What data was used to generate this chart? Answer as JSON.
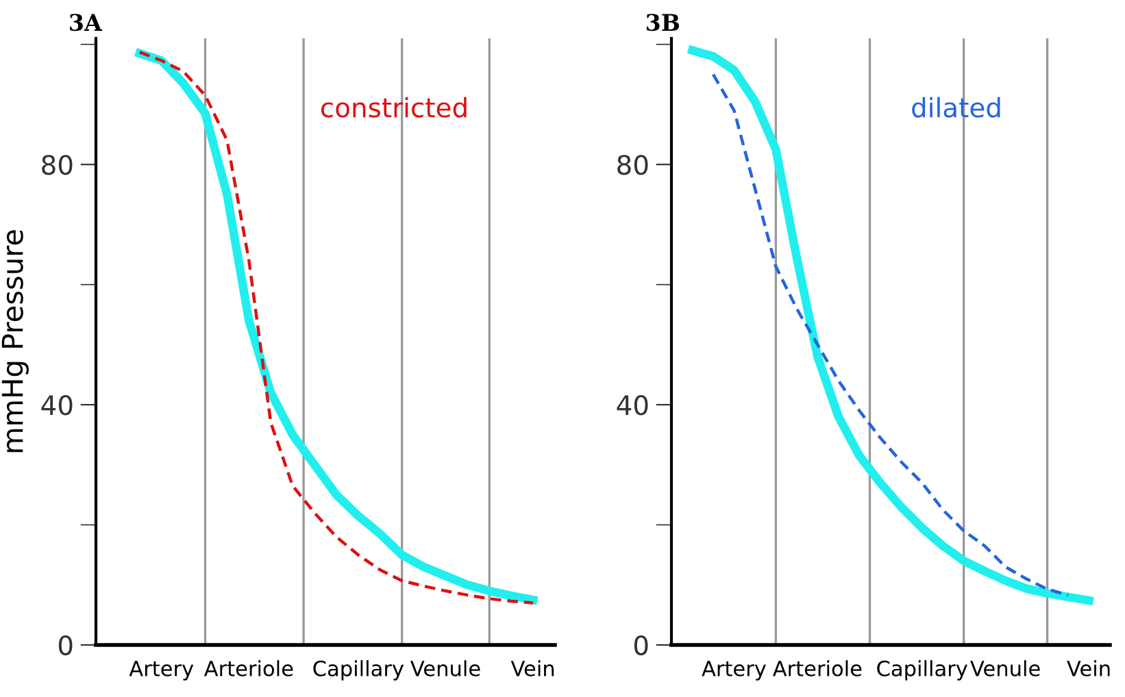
{
  "chart_data": [
    {
      "type": "line",
      "title": "3A",
      "ylabel": "mmHg Pressure",
      "ylim": [
        0,
        101
      ],
      "grid": "x",
      "categories": [
        null,
        null,
        "Artery",
        null,
        null,
        null,
        "Arteriole",
        null,
        null,
        null,
        null,
        "Capillary",
        null,
        null,
        null,
        "Venule",
        null,
        null,
        null,
        "Vein",
        null
      ],
      "yticks": [
        0,
        {
          "value": 20,
          "label": null
        },
        40,
        {
          "value": 60,
          "label": null
        },
        80,
        {
          "value": 100,
          "label": null
        }
      ],
      "series": [
        {
          "color": "#dd1111",
          "line_style": "dashed",
          "values": [
            null,
            98.7,
            97.3,
            95.5,
            91.5,
            84,
            64,
            37,
            26.5,
            22,
            18,
            15,
            12.5,
            10.7,
            9.8,
            9,
            8.3,
            7.7,
            7.3,
            7,
            null
          ],
          "name": "constricted"
        },
        {
          "color": "#22eeee",
          "line_style": "solid",
          "values": [
            null,
            98.5,
            97.3,
            93.5,
            88.5,
            75,
            54,
            42,
            35,
            30,
            25,
            21.5,
            18.5,
            15,
            13,
            11.5,
            10,
            9,
            8.2,
            7.5,
            null
          ]
        }
      ]
    },
    {
      "type": "line",
      "title": "3B",
      "ylim": [
        0,
        101
      ],
      "grid": "x",
      "categories": [
        null,
        null,
        "Artery",
        null,
        null,
        null,
        "Arteriole",
        null,
        null,
        null,
        null,
        "Capillary",
        null,
        null,
        null,
        "Venule",
        null,
        null,
        null,
        "Vein",
        null
      ],
      "yticks": [
        0,
        {
          "value": 20,
          "label": null
        },
        40,
        {
          "value": 60,
          "label": null
        },
        80,
        {
          "value": 100,
          "label": null
        }
      ],
      "series": [
        {
          "color": "#2266dd",
          "line_style": "dashed",
          "values": [
            null,
            95,
            89,
            76,
            63,
            56,
            50,
            44,
            39,
            34.5,
            30.5,
            27,
            22.5,
            19,
            16.5,
            13,
            11,
            9.3,
            8.3,
            null,
            null
          ],
          "name": "dilated"
        },
        {
          "color": "#22eeee",
          "line_style": "solid",
          "values": [
            99,
            98,
            95.7,
            90.5,
            82.5,
            64.5,
            48,
            38,
            31.5,
            27,
            23,
            19.5,
            16.5,
            14,
            12.3,
            10.7,
            9.4,
            8.6,
            8,
            7.4,
            null
          ]
        }
      ]
    }
  ]
}
